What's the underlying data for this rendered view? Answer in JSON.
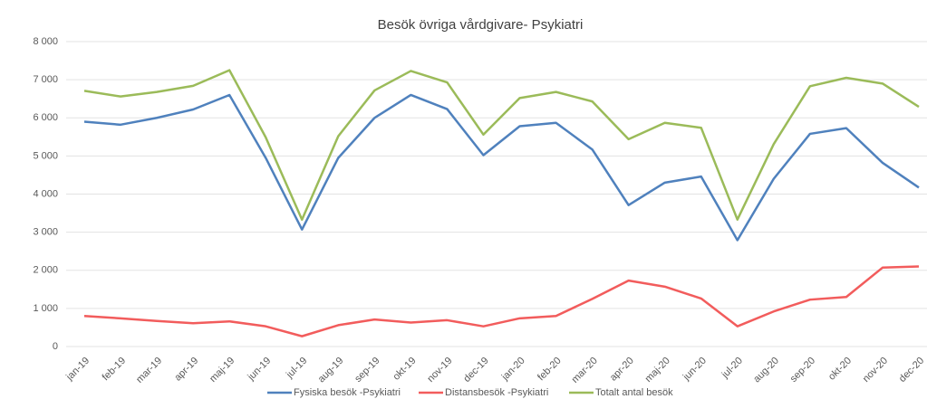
{
  "chart_data": {
    "type": "line",
    "title": "Besök övriga vårdgivare- Psykiatri",
    "categories": [
      "jan-19",
      "feb-19",
      "mar-19",
      "apr-19",
      "maj-19",
      "jun-19",
      "jul-19",
      "aug-19",
      "sep-19",
      "okt-19",
      "nov-19",
      "dec-19",
      "jan-20",
      "feb-20",
      "mar-20",
      "apr-20",
      "maj-20",
      "jun-20",
      "jul-20",
      "aug-20",
      "sep-20",
      "okt-20",
      "nov-20",
      "dec-20"
    ],
    "series": [
      {
        "name": "Fysiska besök -Psykiatri",
        "color": "#4f81bd",
        "values": [
          5900,
          5820,
          6000,
          6220,
          6600,
          4950,
          3070,
          4950,
          6000,
          6600,
          6230,
          5020,
          5780,
          5870,
          5170,
          3710,
          4300,
          4460,
          2790,
          4400,
          5580,
          5730,
          4820,
          4170
        ]
      },
      {
        "name": "Distansbesök -Psykiatri",
        "color": "#f25c5c",
        "values": [
          800,
          740,
          670,
          610,
          660,
          530,
          270,
          560,
          710,
          630,
          690,
          530,
          740,
          800,
          1250,
          1730,
          1570,
          1260,
          530,
          920,
          1230,
          1300,
          2070,
          2100
        ]
      },
      {
        "name": "Totalt antal besök",
        "color": "#9bbb59",
        "values": [
          6710,
          6560,
          6680,
          6840,
          7250,
          5490,
          3330,
          5520,
          6720,
          7230,
          6930,
          5560,
          6520,
          6680,
          6430,
          5440,
          5870,
          5740,
          3330,
          5310,
          6830,
          7050,
          6900,
          6290
        ]
      }
    ],
    "ylim": [
      0,
      8000
    ],
    "yticks": [
      0,
      {
        "value": 1000,
        "label": "1 000"
      },
      {
        "value": 2000,
        "label": "2 000"
      },
      {
        "value": 3000,
        "label": "3 000"
      },
      {
        "value": 4000,
        "label": "4 000"
      },
      {
        "value": 5000,
        "label": "5 000"
      },
      {
        "value": 6000,
        "label": "6 000"
      },
      {
        "value": 7000,
        "label": "7 000"
      },
      {
        "value": 8000,
        "label": "8 000"
      }
    ],
    "grid": true,
    "legend": "bottom"
  }
}
